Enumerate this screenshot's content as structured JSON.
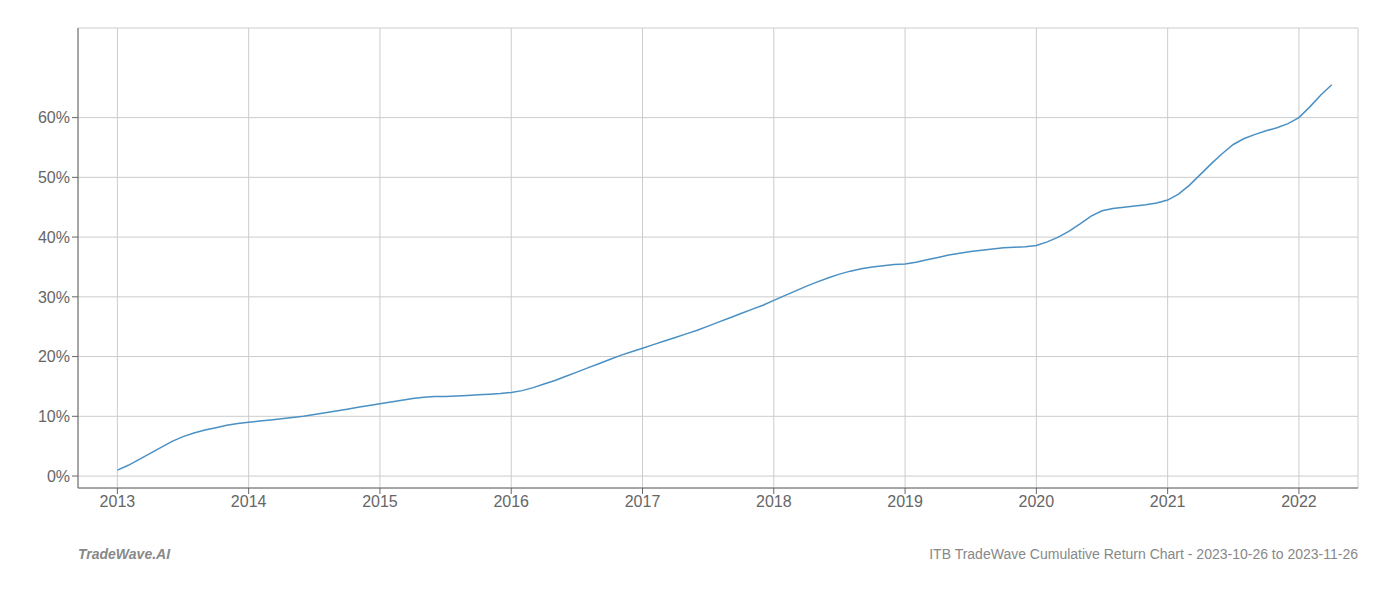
{
  "chart_data": {
    "type": "line",
    "title": "ITB TradeWave Cumulative Return Chart - 2023-10-26 to 2023-11-26",
    "annotations": [
      "TradeWave.AI"
    ],
    "color": "#4a90c4",
    "grid": true,
    "x": [
      2013.0,
      2013.083,
      2013.167,
      2013.25,
      2013.333,
      2013.417,
      2013.5,
      2013.583,
      2013.667,
      2013.75,
      2013.833,
      2013.917,
      2014.0,
      2014.083,
      2014.167,
      2014.25,
      2014.333,
      2014.417,
      2014.5,
      2014.583,
      2014.667,
      2014.75,
      2014.833,
      2014.917,
      2015.0,
      2015.083,
      2015.167,
      2015.25,
      2015.333,
      2015.417,
      2015.5,
      2015.583,
      2015.667,
      2015.75,
      2015.833,
      2015.917,
      2016.0,
      2016.083,
      2016.167,
      2016.25,
      2016.333,
      2016.417,
      2016.5,
      2016.583,
      2016.667,
      2016.75,
      2016.833,
      2016.917,
      2017.0,
      2017.083,
      2017.167,
      2017.25,
      2017.333,
      2017.417,
      2017.5,
      2017.583,
      2017.667,
      2017.75,
      2017.833,
      2017.917,
      2018.0,
      2018.083,
      2018.167,
      2018.25,
      2018.333,
      2018.417,
      2018.5,
      2018.583,
      2018.667,
      2018.75,
      2018.833,
      2018.917,
      2019.0,
      2019.083,
      2019.167,
      2019.25,
      2019.333,
      2019.417,
      2019.5,
      2019.583,
      2019.667,
      2019.75,
      2019.833,
      2019.917,
      2020.0,
      2020.083,
      2020.167,
      2020.25,
      2020.333,
      2020.417,
      2020.5,
      2020.583,
      2020.667,
      2020.75,
      2020.833,
      2020.917,
      2021.0,
      2021.083,
      2021.167,
      2021.25,
      2021.333,
      2021.417,
      2021.5,
      2021.583,
      2021.667,
      2021.75,
      2021.833,
      2021.917,
      2022.0,
      2022.083,
      2022.167,
      2022.25
    ],
    "values": [
      0.01,
      0.018,
      0.028,
      0.038,
      0.048,
      0.058,
      0.066,
      0.072,
      0.077,
      0.081,
      0.085,
      0.088,
      0.09,
      0.092,
      0.094,
      0.096,
      0.098,
      0.1,
      0.103,
      0.106,
      0.109,
      0.112,
      0.115,
      0.118,
      0.121,
      0.124,
      0.127,
      0.13,
      0.132,
      0.133,
      0.133,
      0.134,
      0.135,
      0.136,
      0.137,
      0.138,
      0.14,
      0.143,
      0.148,
      0.154,
      0.16,
      0.167,
      0.174,
      0.181,
      0.188,
      0.195,
      0.202,
      0.208,
      0.214,
      0.22,
      0.226,
      0.232,
      0.238,
      0.244,
      0.251,
      0.258,
      0.265,
      0.272,
      0.279,
      0.286,
      0.294,
      0.302,
      0.31,
      0.318,
      0.325,
      0.332,
      0.338,
      0.343,
      0.347,
      0.35,
      0.352,
      0.354,
      0.355,
      0.358,
      0.362,
      0.366,
      0.37,
      0.373,
      0.376,
      0.378,
      0.38,
      0.382,
      0.383,
      0.384,
      0.386,
      0.392,
      0.4,
      0.41,
      0.422,
      0.435,
      0.444,
      0.448,
      0.45,
      0.452,
      0.454,
      0.457,
      0.462,
      0.472,
      0.487,
      0.505,
      0.523,
      0.54,
      0.555,
      0.565,
      0.572,
      0.578,
      0.583,
      0.59,
      0.6,
      0.618,
      0.638,
      0.655
    ],
    "xlim": [
      2012.7,
      2022.45
    ],
    "xticks": [
      2013,
      2014,
      2015,
      2016,
      2017,
      2018,
      2019,
      2020,
      2021,
      2022
    ],
    "ylim": [
      -0.02,
      0.75
    ],
    "yticks": [
      {
        "value": 0.0,
        "label": "0%"
      },
      {
        "value": 0.1,
        "label": "10%"
      },
      {
        "value": 0.2,
        "label": "20%"
      },
      {
        "value": 0.3,
        "label": "30%"
      },
      {
        "value": 0.4,
        "label": "40%"
      },
      {
        "value": 0.5,
        "label": "50%"
      },
      {
        "value": 0.6,
        "label": "60%"
      }
    ]
  }
}
